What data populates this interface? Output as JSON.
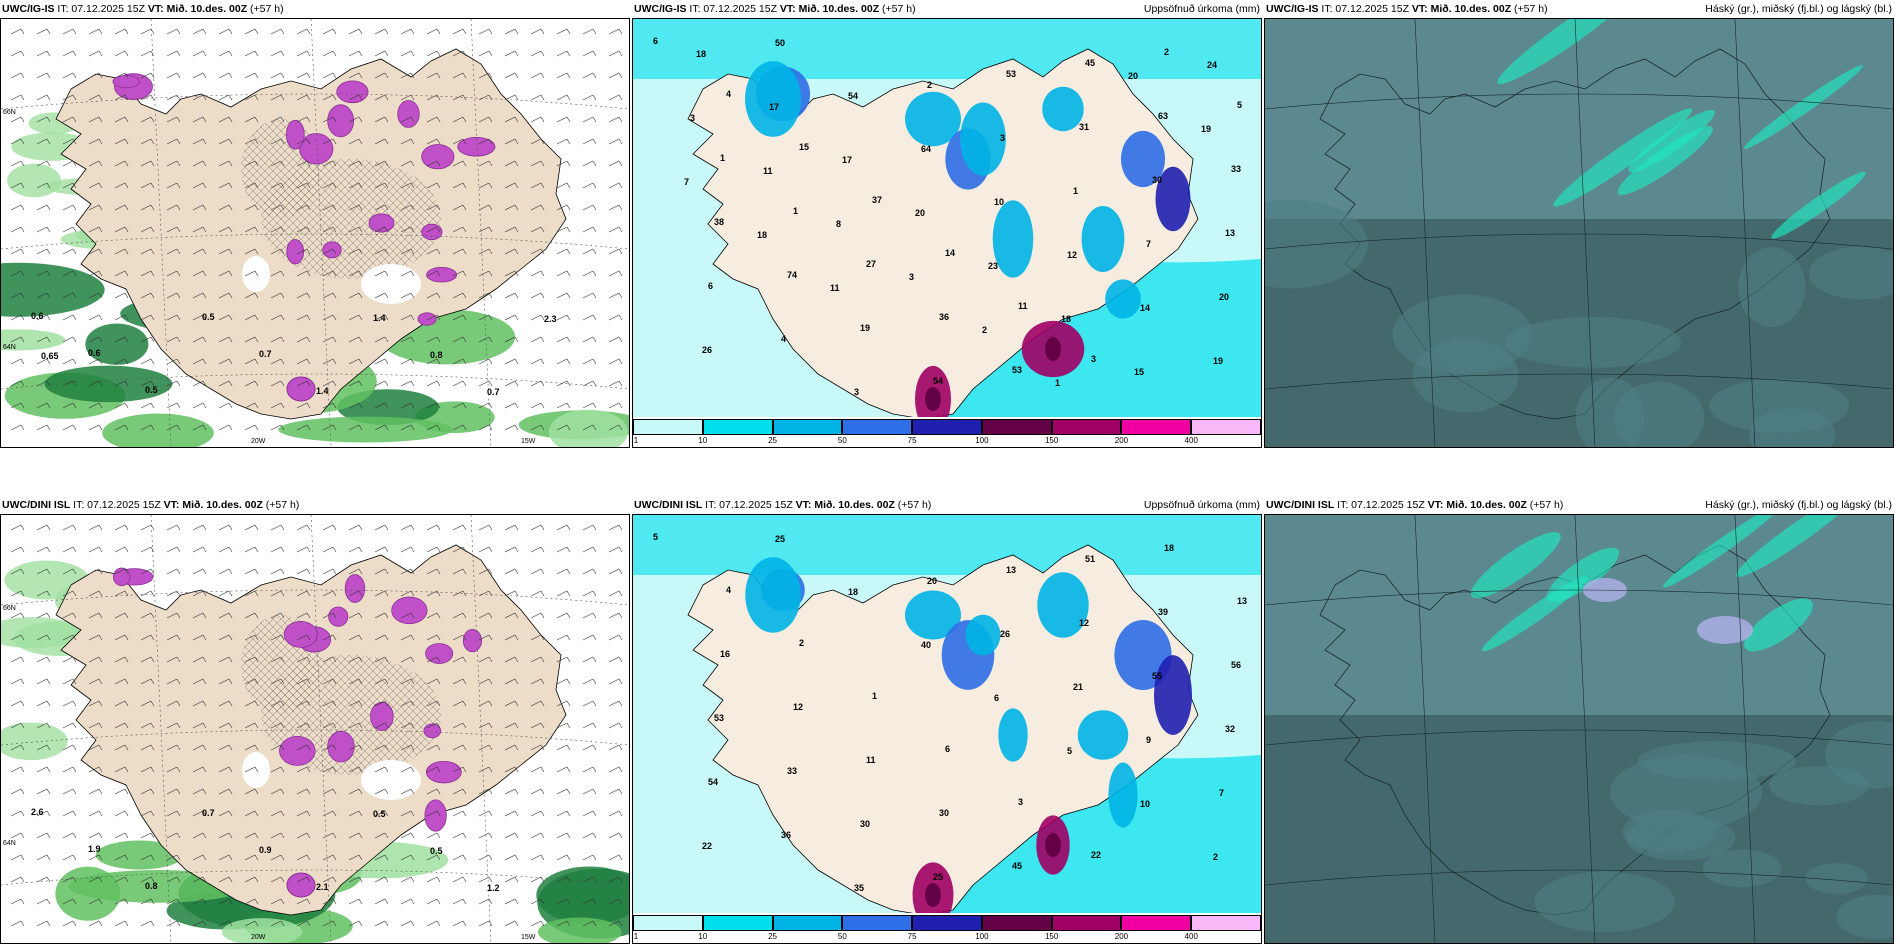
{
  "panels": [
    {
      "model": "UWC/IG-IS",
      "it": "IT: 07.12.2025 15Z",
      "vt": "VT: Mið. 10.des. 00Z",
      "lead": "(+57 h)",
      "right": ""
    },
    {
      "model": "UWC/IG-IS",
      "it": "IT: 07.12.2025 15Z",
      "vt": "VT: Mið. 10.des. 00Z",
      "lead": "(+57 h)",
      "right": "Uppsöfnuð úrkoma (mm)"
    },
    {
      "model": "UWC/IG-IS",
      "it": "IT: 07.12.2025 15Z",
      "vt": "VT: Mið. 10.des. 00Z",
      "lead": "(+57 h)",
      "right": "Háský (gr.), miðský (fj.bl.) og lágský (bl.)"
    },
    {
      "model": "UWC/DINI ISL",
      "it": "IT: 07.12.2025 15Z",
      "vt": "VT: Mið. 10.des. 00Z",
      "lead": "(+57 h)",
      "right": ""
    },
    {
      "model": "UWC/DINI ISL",
      "it": "IT: 07.12.2025 15Z",
      "vt": "VT: Mið. 10.des. 00Z",
      "lead": "(+57 h)",
      "right": "Uppsöfnuð úrkoma (mm)"
    },
    {
      "model": "UWC/DINI ISL",
      "it": "IT: 07.12.2025 15Z",
      "vt": "VT: Mið. 10.des. 00Z",
      "lead": "(+57 h)",
      "right": "Háský (gr.), miðský (fj.bl.) og lágský (bl.)"
    }
  ],
  "colorbar": {
    "ticks": [
      "1",
      "10",
      "25",
      "50",
      "75",
      "100",
      "150",
      "200",
      "400"
    ],
    "colors": [
      "#c8f8f8",
      "#00e0ec",
      "#00b4e6",
      "#2e6ee6",
      "#2020b0",
      "#640046",
      "#a00064",
      "#f000a0",
      "#f8b8f8"
    ]
  },
  "axis_labels": {
    "lat66": "66N",
    "lat64": "64N",
    "lat63": "63N",
    "lon20": "20W",
    "lon15": "15W"
  },
  "snow_labels_top": [
    "0.6",
    "0.6",
    "0.5",
    "0.5",
    "0.7",
    "1.4",
    "1.4",
    "0.8",
    "0.7",
    "2.3",
    "0.65"
  ],
  "snow_labels_bottom": [
    "2.6",
    "1.9",
    "0.8",
    "0.7",
    "0.9",
    "2.1",
    "0.5",
    "0.5",
    "1.2"
  ],
  "precip_labels_top": [
    "6",
    "4",
    "15",
    "37",
    "14",
    "11",
    "3",
    "2",
    "5",
    "1",
    "1",
    "27",
    "36",
    "53",
    "45",
    "63",
    "33",
    "38",
    "74",
    "19",
    "54",
    "53",
    "31",
    "30",
    "13",
    "6",
    "4",
    "3",
    "2",
    "3",
    "1",
    "7",
    "20",
    "26",
    "50",
    "54",
    "64",
    "10",
    "12",
    "14",
    "19",
    "18",
    "17",
    "17",
    "20",
    "23",
    "18",
    "15",
    "24",
    "3",
    "11",
    "8",
    "3",
    "2",
    "1",
    "20",
    "19",
    "7",
    "18",
    "11"
  ],
  "precip_labels_bottom": [
    "5",
    "4",
    "2",
    "1",
    "6",
    "3",
    "22",
    "18",
    "13",
    "16",
    "12",
    "11",
    "30",
    "45",
    "51",
    "39",
    "56",
    "53",
    "33",
    "30",
    "25",
    "13",
    "12",
    "55",
    "32",
    "54",
    "36",
    "35",
    "20",
    "26",
    "21",
    "9",
    "7",
    "22",
    "25",
    "18",
    "40",
    "6",
    "5",
    "10",
    "2"
  ],
  "cloud_legend": [
    "high",
    "mid",
    "low"
  ],
  "colors": {
    "land": "#ecdcc8",
    "snow": "#c050c8",
    "sea_green": "#a0e0a0",
    "cloud_base": "#5c8890",
    "cloud_mid": "#4e7f86",
    "cloud_dark": "#3a5c5c",
    "cloud_bright": "#1ee8c0"
  }
}
